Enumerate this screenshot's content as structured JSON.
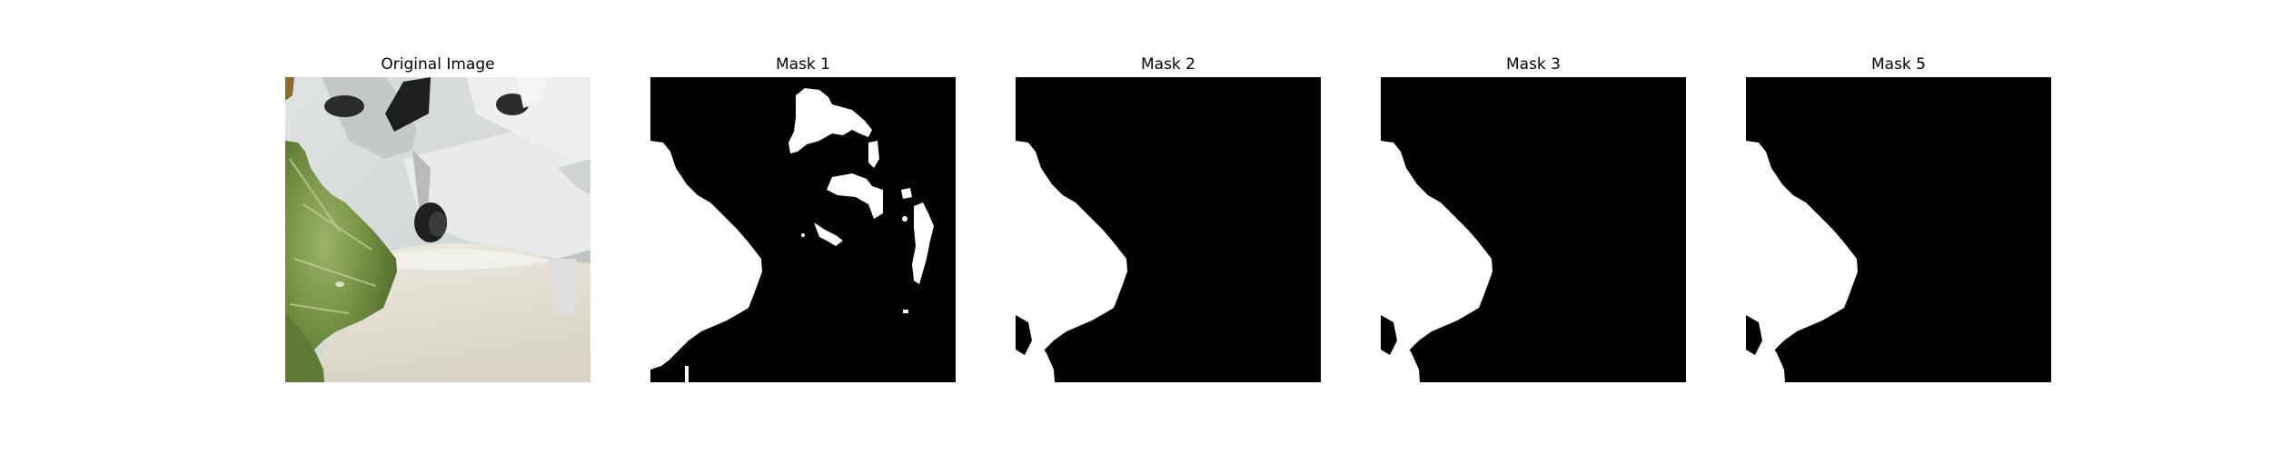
{
  "panels": [
    {
      "id": "original",
      "title": "Original Image",
      "kind": "photo"
    },
    {
      "id": "mask-1",
      "title": "Mask 1",
      "kind": "mask"
    },
    {
      "id": "mask-2",
      "title": "Mask 2",
      "kind": "mask"
    },
    {
      "id": "mask-3",
      "title": "Mask 3",
      "kind": "mask"
    },
    {
      "id": "mask-5",
      "title": "Mask 5",
      "kind": "mask"
    }
  ],
  "colors": {
    "background": "#ffffff",
    "mask_foreground": "#ffffff",
    "mask_background": "#000000",
    "leaf_dark": "#5f7a36",
    "leaf_light": "#9bb36a",
    "wall_white": "#e6e9e8",
    "fixture_dark": "#1e1f1f"
  }
}
